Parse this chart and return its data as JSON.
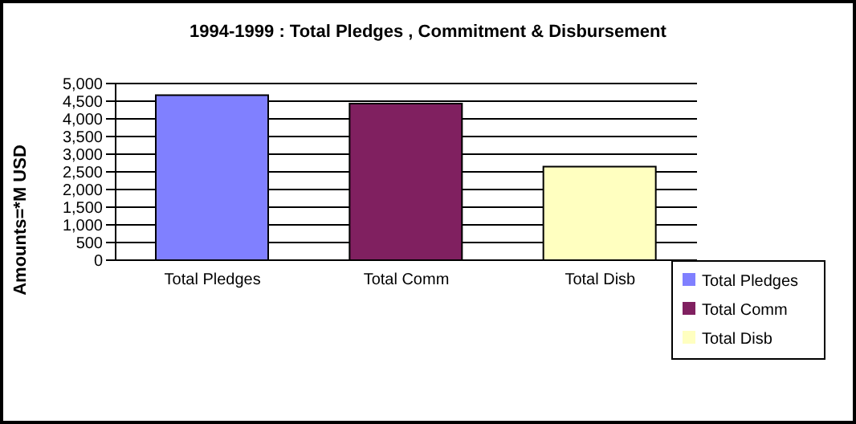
{
  "chart_data": {
    "type": "bar",
    "title": "1994-1999 : Total Pledges , Commitment & Disbursement",
    "ylabel": "Amounts=*M USD",
    "categories": [
      "Total Pledges",
      "Total Comm",
      "Total Disb"
    ],
    "series": [
      {
        "name": "Total Pledges",
        "color": "#8080ff",
        "values": [
          4670,
          null,
          null
        ]
      },
      {
        "name": "Total Comm",
        "color": "#802060",
        "values": [
          null,
          4430,
          null
        ]
      },
      {
        "name": "Total Disb",
        "color": "#ffffc0",
        "values": [
          null,
          null,
          2650
        ]
      }
    ],
    "stacked": true,
    "ylim": [
      0,
      5000
    ],
    "yticks": [
      {
        "value": 0,
        "label": "0"
      },
      {
        "value": 500,
        "label": "500"
      },
      {
        "value": 1000,
        "label": "1,000"
      },
      {
        "value": 1500,
        "label": "1,500"
      },
      {
        "value": 2000,
        "label": "2,000"
      },
      {
        "value": 2500,
        "label": "2,500"
      },
      {
        "value": 3000,
        "label": "3,000"
      },
      {
        "value": 3500,
        "label": "3,500"
      },
      {
        "value": 4000,
        "label": "4,000"
      },
      {
        "value": 4500,
        "label": "4,500"
      },
      {
        "value": 5000,
        "label": "5,000"
      }
    ],
    "grid": "y",
    "legend": "right"
  }
}
